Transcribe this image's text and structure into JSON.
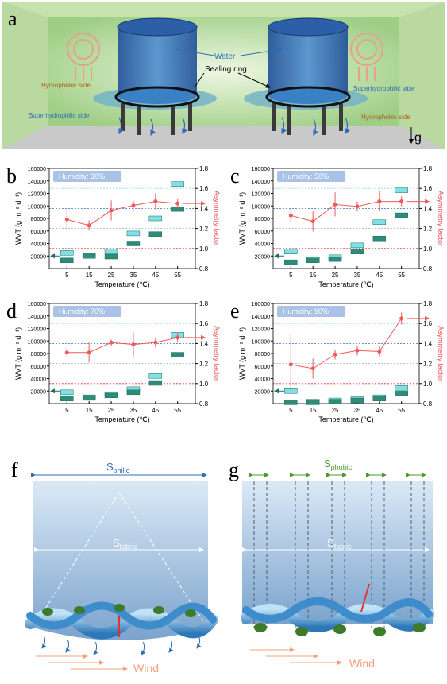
{
  "panel_a": {
    "label": "a",
    "water": "Water",
    "sealing": "Sealing ring",
    "left_top": "Hydrophobic side",
    "left_bottom": "Superhydrophilic side",
    "right_top": "Superhydrophilic side",
    "right_bottom": "Hydrophobic side",
    "gravity": "g"
  },
  "chart_data": [
    {
      "type": "box",
      "label": "b",
      "title": "Humidity: 30%",
      "xlabel": "Temperature (℃)",
      "ylabel": "WVT (g m⁻² d⁻¹)",
      "y2label": "Asymmetry factor",
      "categories": [
        "5",
        "15",
        "25",
        "35",
        "45",
        "55"
      ],
      "series": [
        {
          "color": "#7fe0e6",
          "values": [
            25000,
            20000,
            27000,
            56000,
            80000,
            135000
          ]
        },
        {
          "color": "#2e8b7a",
          "values": [
            13000,
            21000,
            19000,
            40000,
            55000,
            95000
          ]
        },
        {
          "color": "#f05a5a",
          "axis": "y2",
          "values": [
            1.29,
            1.23,
            1.38,
            1.43,
            1.47,
            1.45
          ],
          "errors": [
            0.1,
            0.05,
            0.1,
            0.05,
            0.08,
            0.05
          ]
        }
      ],
      "ylim": [
        0,
        160000
      ],
      "yticks": [
        20000,
        40000,
        60000,
        80000,
        100000,
        120000,
        140000,
        160000
      ],
      "y2lim": [
        0.8,
        1.8
      ],
      "y2ticks": [
        0.8,
        {
          "value": 1,
          "label": "1.0"
        },
        1.2,
        1.4,
        1.6,
        1.8
      ]
    },
    {
      "type": "box",
      "label": "c",
      "title": "Humidity: 50%",
      "xlabel": "Temperature (℃)",
      "ylabel": "WVT (g m⁻² d⁻¹)",
      "y2label": "Asymmetry factor",
      "categories": [
        "5",
        "15",
        "25",
        "35",
        "45",
        "55"
      ],
      "series": [
        {
          "color": "#7fe0e6",
          "values": [
            27000,
            15000,
            18000,
            37000,
            74000,
            125000
          ]
        },
        {
          "color": "#2e8b7a",
          "values": [
            10000,
            13000,
            15000,
            27000,
            48000,
            85000
          ]
        },
        {
          "color": "#f05a5a",
          "axis": "y2",
          "values": [
            1.33,
            1.27,
            1.44,
            1.42,
            1.47,
            1.47
          ],
          "errors": [
            0.07,
            0.1,
            0.12,
            0.05,
            0.1,
            0.05
          ]
        }
      ],
      "ylim": [
        0,
        160000
      ],
      "yticks": [
        20000,
        40000,
        60000,
        80000,
        100000,
        120000,
        140000,
        160000
      ],
      "y2lim": [
        0.8,
        1.8
      ],
      "y2ticks": [
        0.8,
        {
          "value": 1,
          "label": "1.0"
        },
        1.2,
        1.4,
        1.6,
        1.8
      ]
    },
    {
      "type": "box",
      "label": "d",
      "title": "Humidity: 70%",
      "xlabel": "Temperature (℃)",
      "ylabel": "WVT (g m⁻² d⁻¹)",
      "y2label": "Asymmetry factor",
      "categories": [
        "5",
        "15",
        "25",
        "35",
        "45",
        "55"
      ],
      "series": [
        {
          "color": "#7fe0e6",
          "values": [
            18000,
            10000,
            15000,
            23000,
            44000,
            110000
          ]
        },
        {
          "color": "#2e8b7a",
          "values": [
            8000,
            9000,
            13000,
            18000,
            33000,
            78000
          ]
        },
        {
          "color": "#f05a5a",
          "axis": "y2",
          "values": [
            1.31,
            1.31,
            1.41,
            1.39,
            1.41,
            1.46
          ],
          "errors": [
            0.05,
            0.1,
            0.03,
            0.12,
            0.05,
            0.05
          ]
        }
      ],
      "ylim": [
        0,
        160000
      ],
      "yticks": [
        20000,
        40000,
        60000,
        80000,
        100000,
        120000,
        140000,
        160000
      ],
      "y2lim": [
        0.8,
        1.8
      ],
      "y2ticks": [
        0.8,
        {
          "value": 1,
          "label": "1.0"
        },
        1.2,
        1.4,
        1.6,
        1.8
      ]
    },
    {
      "type": "box",
      "label": "e",
      "title": "Humidity: 90%",
      "xlabel": "Temperature (℃)",
      "ylabel": "WVT (g m⁻² d⁻¹)",
      "y2label": "Asymmetry factor",
      "categories": [
        "5",
        "15",
        "25",
        "35",
        "45",
        "55"
      ],
      "series": [
        {
          "color": "#7fe0e6",
          "values": [
            20000,
            3000,
            5000,
            7000,
            10000,
            25000
          ]
        },
        {
          "color": "#2e8b7a",
          "values": [
            2000,
            2000,
            3000,
            5000,
            8000,
            16000
          ]
        },
        {
          "color": "#f05a5a",
          "axis": "y2",
          "values": [
            1.19,
            1.15,
            1.29,
            1.33,
            1.32,
            1.65
          ],
          "errors": [
            0.3,
            0.1,
            0.05,
            0.05,
            0.05,
            0.06
          ]
        }
      ],
      "ylim": [
        0,
        160000
      ],
      "yticks": [
        20000,
        40000,
        60000,
        80000,
        100000,
        120000,
        140000,
        160000
      ],
      "y2lim": [
        0.8,
        1.8
      ],
      "y2ticks": [
        0.8,
        {
          "value": 1,
          "label": "1.0"
        },
        1.2,
        1.4,
        1.6,
        1.8
      ]
    }
  ],
  "panel_f": {
    "label": "f",
    "top": {
      "symbol": "S",
      "subscript": "philic"
    },
    "fabric": {
      "symbol": "S",
      "subscript": "fabric"
    },
    "wind": "Wind"
  },
  "panel_g": {
    "label": "g",
    "top": {
      "symbol": "S",
      "subscript": "phobic"
    },
    "fabric": {
      "symbol": "S",
      "subscript": "fabric"
    },
    "wind": "Wind"
  }
}
